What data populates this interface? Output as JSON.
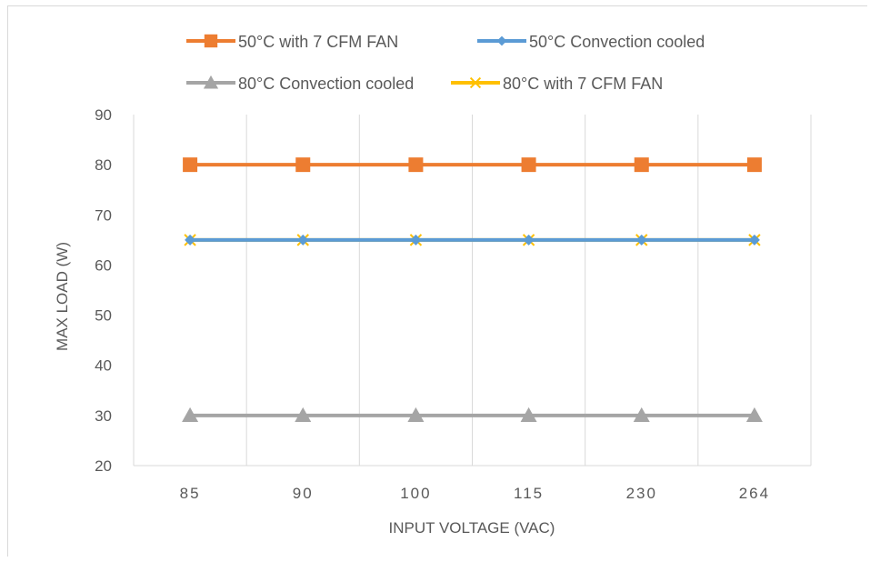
{
  "chart_data": {
    "type": "line",
    "title": "",
    "xlabel": "INPUT VOLTAGE (VAC)",
    "ylabel": "MAX LOAD (W)",
    "categories": [
      "85",
      "90",
      "100",
      "115",
      "230",
      "264"
    ],
    "ylim": [
      20,
      90
    ],
    "yticks": [
      20,
      30,
      40,
      50,
      60,
      70,
      80,
      90
    ],
    "grid": "vertical",
    "legend_position": "top",
    "series": [
      {
        "name": "50°C with 7 CFM FAN",
        "values": [
          80,
          80,
          80,
          80,
          80,
          80
        ],
        "color": "#ED7D31",
        "marker": "square"
      },
      {
        "name": "50°C Convection cooled",
        "values": [
          65,
          65,
          65,
          65,
          65,
          65
        ],
        "color": "#5B9BD5",
        "marker": "diamond"
      },
      {
        "name": "80°C Convection cooled",
        "values": [
          30,
          30,
          30,
          30,
          30,
          30
        ],
        "color": "#A5A5A5",
        "marker": "triangle"
      },
      {
        "name": "80°C with 7 CFM FAN",
        "values": [
          65,
          65,
          65,
          65,
          65,
          65
        ],
        "color": "#FFC000",
        "marker": "x"
      }
    ]
  }
}
